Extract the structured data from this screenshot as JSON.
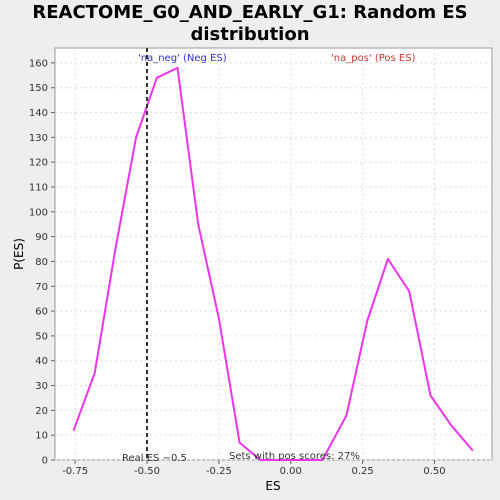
{
  "chart_data": {
    "type": "line",
    "title_line1": "REACTOME_G0_AND_EARLY_G1: Random ES",
    "title_line2": "distribution",
    "xlabel": "ES",
    "ylabel": "P(ES)",
    "xlim": [
      -0.82,
      0.7
    ],
    "ylim": [
      0,
      166
    ],
    "xticks": [
      -0.75,
      -0.5,
      -0.25,
      0.0,
      0.25,
      0.5
    ],
    "xtick_labels": [
      "-0.75",
      "-0.50",
      "-0.25",
      "0.00",
      "0.25",
      "0.50"
    ],
    "yticks": [
      0,
      10,
      20,
      30,
      40,
      50,
      60,
      70,
      80,
      90,
      100,
      110,
      120,
      130,
      140,
      150,
      160
    ],
    "ytick_labels": [
      "0",
      "10",
      "20",
      "30",
      "40",
      "50",
      "60",
      "70",
      "80",
      "90",
      "100",
      "110",
      "120",
      "130",
      "140",
      "150",
      "160"
    ],
    "grid": true,
    "series": [
      {
        "color": "#ee33ee",
        "x": [
          -0.755,
          -0.682,
          -0.61,
          -0.538,
          -0.466,
          -0.394,
          -0.322,
          -0.25,
          -0.178,
          -0.106,
          -0.034,
          0.038,
          0.11,
          0.194,
          0.266,
          0.338,
          0.412,
          0.486,
          0.558,
          0.632
        ],
        "y": [
          12,
          35,
          85,
          130,
          154,
          158,
          95,
          57,
          7,
          0,
          0,
          0,
          0,
          18,
          56,
          81,
          68,
          26,
          14,
          4
        ]
      }
    ],
    "real_es": -0.5,
    "real_es_color": "#333333",
    "annotations": {
      "neg": {
        "text": "'na_neg' (Neg ES)",
        "color": "#3333cc"
      },
      "pos": {
        "text": "'na_pos' (Pos ES)",
        "color": "#cc3333"
      },
      "real": {
        "text": "Real ES −0.5",
        "color": "#333333"
      },
      "sets": {
        "text": "Sets with pos scores: 27%",
        "color": "#333333"
      }
    }
  }
}
